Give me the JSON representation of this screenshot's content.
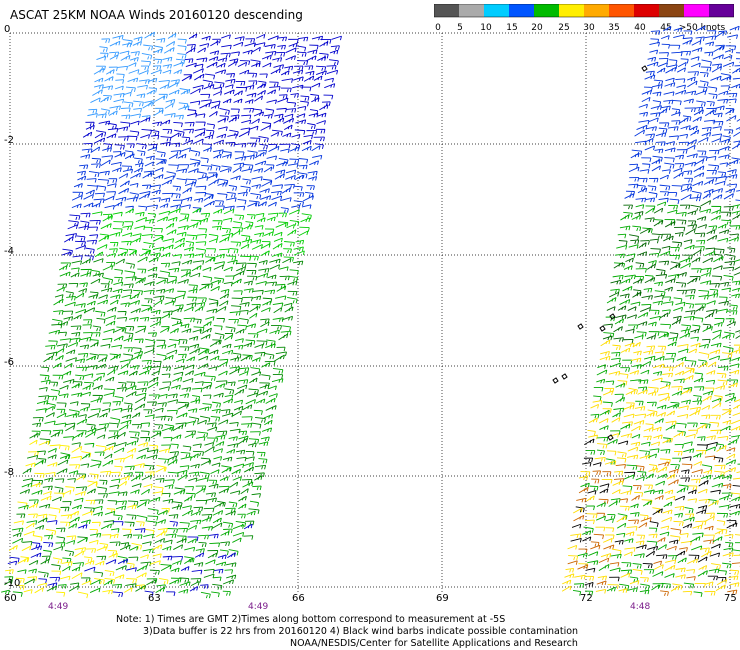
{
  "title": "ASCAT 25KM NOAA Winds 20160120 descending",
  "legend": {
    "labels": [
      "0",
      "5",
      "10",
      "15",
      "20",
      "25",
      "30",
      "35",
      "40",
      "45",
      ">50 knots"
    ],
    "colors": [
      "#555555",
      "#aaaaaa",
      "#00ccff",
      "#0055ff",
      "#00bb00",
      "#ffee00",
      "#ffaa00",
      "#ff5500",
      "#dd0000",
      "#8b4513",
      "#ff00ff",
      "#660099"
    ]
  },
  "axes": {
    "y_ticks": [
      "0",
      "-2",
      "-4",
      "-6",
      "-8",
      "-10"
    ],
    "x_ticks": [
      "60",
      "63",
      "66",
      "69",
      "72",
      "75"
    ]
  },
  "gmt_times": [
    "4:49",
    "4:49",
    "4:48"
  ],
  "notes": {
    "line1": "Note: 1) Times are GMT 2)Times along bottom correspond to measurement at -5S",
    "line2": "3)Data buffer is 22 hrs from 20160120 4) Black wind barbs indicate possible contamination",
    "line3": "NOAA/NESDIS/Center for Satellite Applications and Research"
  }
}
